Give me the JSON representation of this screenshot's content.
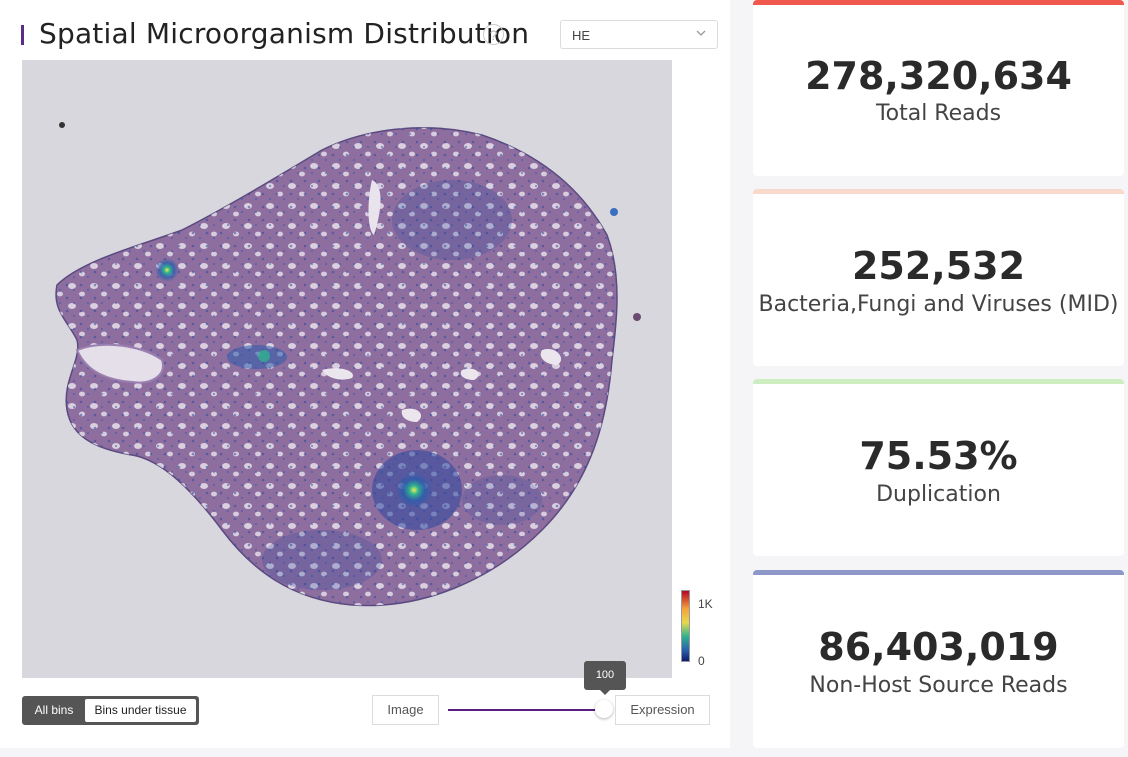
{
  "header": {
    "title": "Spatial Microorganism Distribution",
    "help_icon": "question-icon",
    "stain_select": {
      "value": "HE"
    }
  },
  "colorbar": {
    "max_label": "1K",
    "min_label": "0"
  },
  "controls": {
    "bins": {
      "all_label": "All bins",
      "tissue_label": "Bins under tissue",
      "selected": "All bins"
    },
    "image_label": "Image",
    "expression_label": "Expression",
    "slider_value": "100"
  },
  "stats": [
    {
      "value": "278,320,634",
      "label": "Total Reads",
      "accent": "#f0584d"
    },
    {
      "value": "252,532",
      "label": "Bacteria,Fungi and Viruses (MID)",
      "accent": "#f8d9cc"
    },
    {
      "value": "75.53%",
      "label": "Duplication",
      "accent": "#cdeec1"
    },
    {
      "value": "86,403,019",
      "label": "Non-Host Source Reads",
      "accent": "#8d98c9"
    }
  ]
}
